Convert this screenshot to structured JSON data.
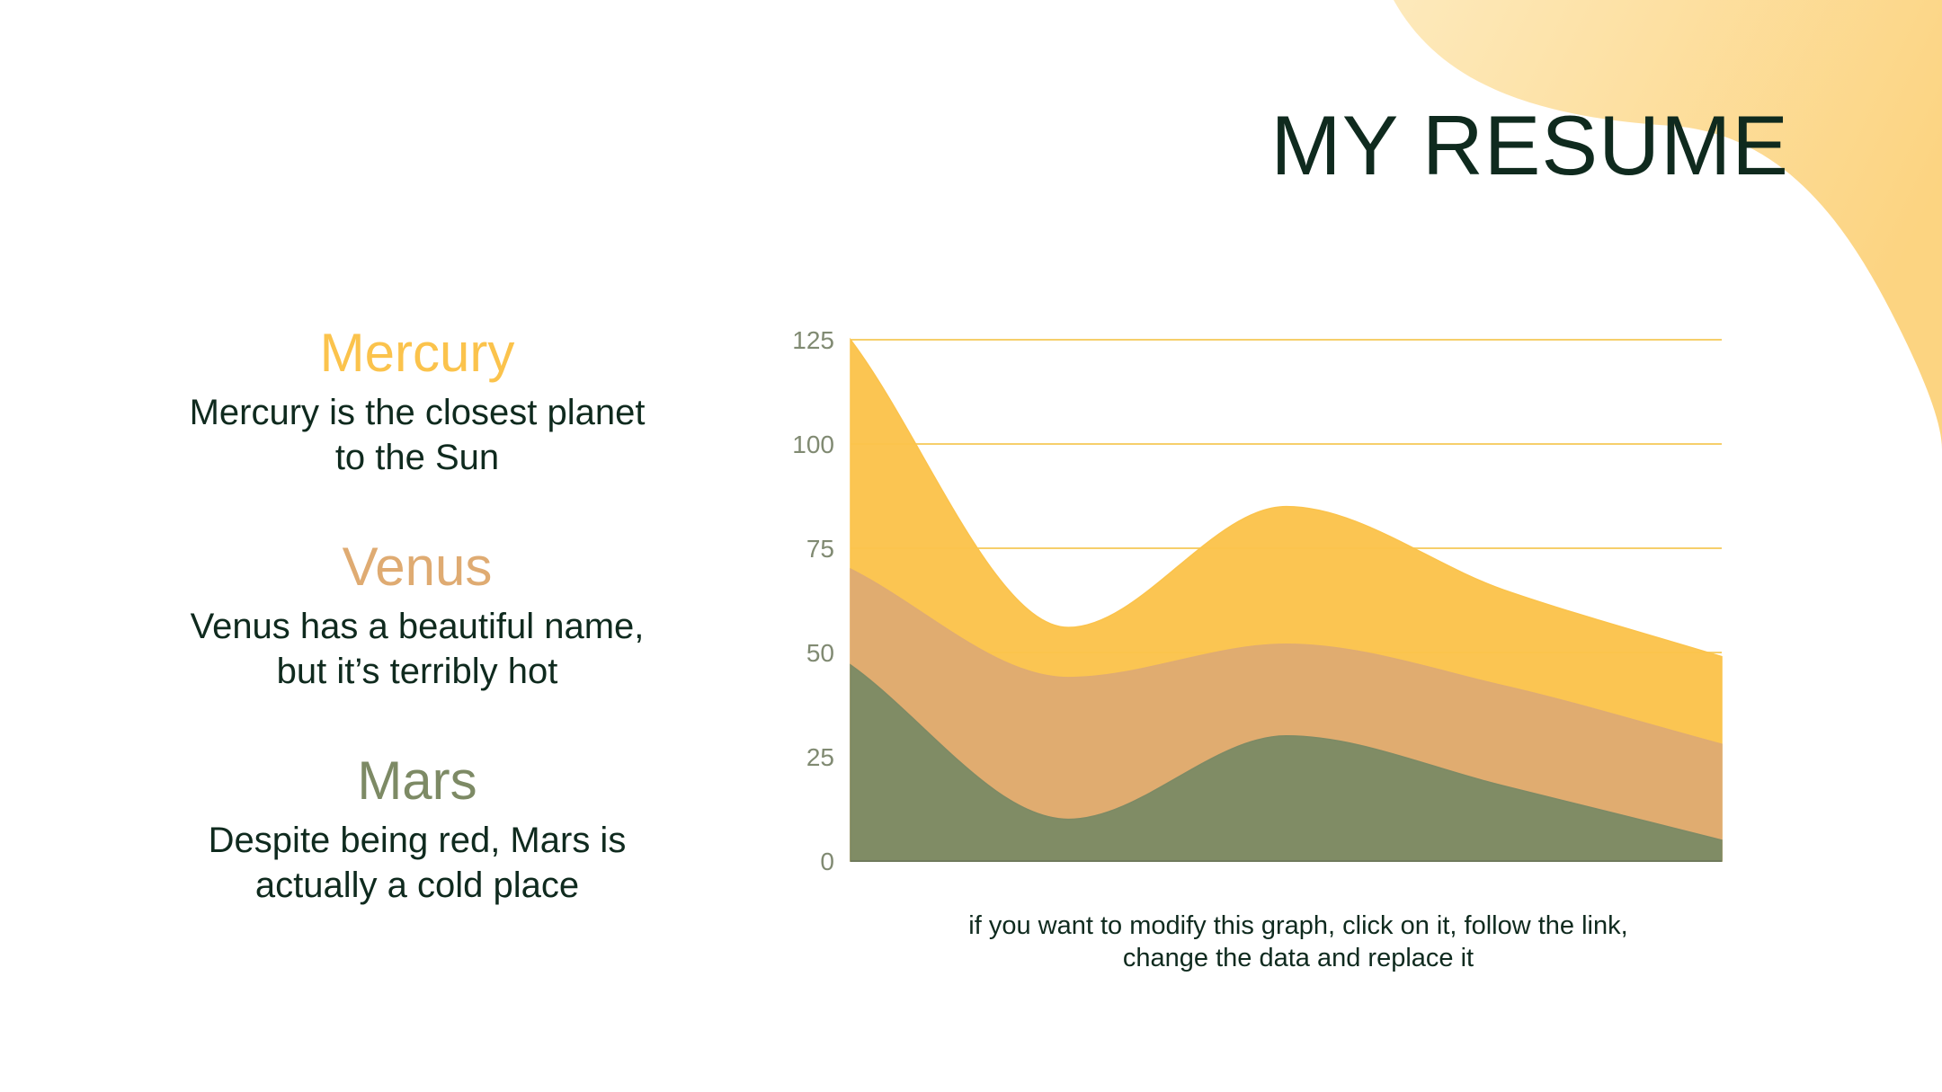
{
  "title": "MY RESUME",
  "colors": {
    "mercury": "#fbc34c",
    "venus": "#dfab72",
    "mars": "#7d8a65",
    "grid": "#f6cf6b",
    "tick": "#808a72",
    "dark": "#0f2a1e"
  },
  "planets": [
    {
      "name": "Mercury",
      "text_line1": "Mercury is the closest planet",
      "text_line2": "to the Sun"
    },
    {
      "name": "Venus",
      "text_line1": "Venus has a beautiful name,",
      "text_line2": "but it’s terribly hot"
    },
    {
      "name": "Mars",
      "text_line1": "Despite being red, Mars is",
      "text_line2": "actually a cold place"
    }
  ],
  "note": {
    "line1": "if you want to modify this graph, click on it, follow the link,",
    "line2": "change the data and replace it"
  },
  "chart_data": {
    "type": "area",
    "stacked": false,
    "x": [
      0,
      1,
      2,
      3,
      4
    ],
    "series": [
      {
        "key": "mercury",
        "values": [
          125,
          56,
          85,
          65,
          49
        ]
      },
      {
        "key": "venus",
        "values": [
          70,
          44,
          52,
          42,
          28
        ]
      },
      {
        "key": "mars",
        "values": [
          47,
          10,
          30,
          18,
          5
        ]
      }
    ],
    "ylim": [
      0,
      125
    ],
    "yticks": [
      "0",
      "25",
      "50",
      "75",
      "100",
      "125"
    ],
    "grid": true,
    "legend": "none"
  }
}
